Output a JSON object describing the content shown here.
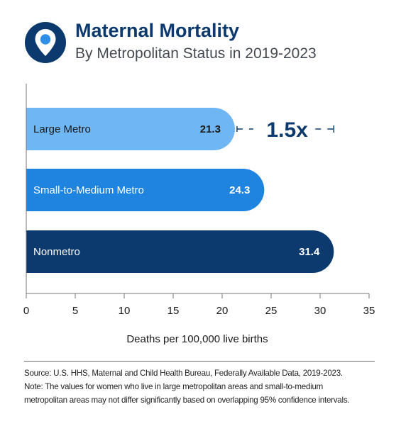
{
  "header": {
    "title": "Maternal Mortality",
    "subtitle": "By Metropolitan Status in 2019-2023",
    "icon": "location-pin-icon"
  },
  "colors": {
    "title": "#0d3a6e",
    "icon_bg": "#0d3a6e",
    "icon_dot": "#2f8fe6",
    "large_metro": "#6fb6f5",
    "small_medium_metro": "#1f84e0",
    "nonmetro": "#0d3a6e",
    "annotation": "#0d3a6e"
  },
  "chart_data": {
    "type": "bar",
    "orientation": "horizontal",
    "categories": [
      "Large Metro",
      "Small-to-Medium Metro",
      "Nonmetro"
    ],
    "values": [
      21.3,
      24.3,
      31.4
    ],
    "value_labels": [
      "21.3",
      "24.3",
      "31.4"
    ],
    "xlabel": "Deaths per 100,000 live births",
    "ylabel": "",
    "xlim": [
      0,
      35
    ],
    "xticks": [
      0,
      5,
      10,
      15,
      20,
      25,
      30,
      35
    ],
    "grid": false,
    "annotation": {
      "text": "1.5x",
      "from_value": 21.3,
      "to_value": 31.4,
      "row": "Large Metro"
    }
  },
  "footer": {
    "source": "Source: U.S. HHS, Maternal and Child Health Bureau, Federally Available Data, 2019-2023.",
    "note_line1": "Note: The values for women who live in large metropolitan areas and small-to-medium",
    "note_line2": "metropolitan areas may not differ significantly based on overlapping 95% confidence intervals."
  }
}
